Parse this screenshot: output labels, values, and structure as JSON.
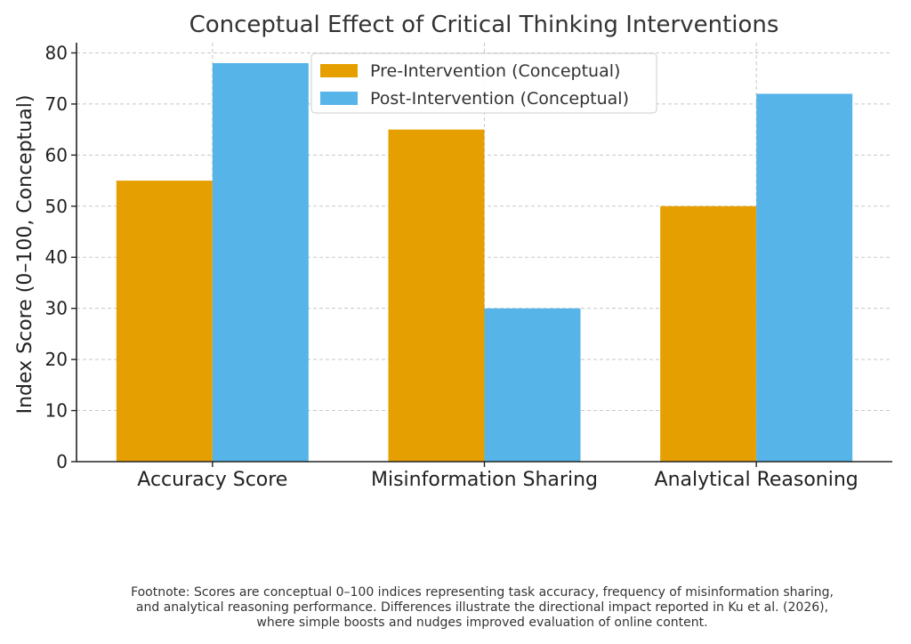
{
  "chart_data": {
    "type": "bar",
    "title": "Conceptual Effect of Critical Thinking Interventions",
    "xlabel": "",
    "ylabel": "Index Score (0–100, Conceptual)",
    "categories": [
      "Accuracy Score",
      "Misinformation Sharing",
      "Analytical Reasoning"
    ],
    "series": [
      {
        "name": "Pre-Intervention (Conceptual)",
        "values": [
          55,
          65,
          50
        ],
        "color": "#E69F00"
      },
      {
        "name": "Post-Intervention (Conceptual)",
        "values": [
          78,
          30,
          72
        ],
        "color": "#56B4E9"
      }
    ],
    "ylim": [
      0,
      82
    ],
    "yticks": [
      0,
      10,
      20,
      30,
      40,
      50,
      60,
      70,
      80
    ],
    "grid": true,
    "legend_position": "top-center"
  },
  "footnote": {
    "lines": [
      "Footnote: Scores are conceptual 0–100 indices representing task accuracy, frequency of misinformation sharing,",
      "and analytical reasoning performance. Differences illustrate the directional impact reported in Ku et al. (2026),",
      "where simple boosts and nudges improved evaluation of online content."
    ]
  }
}
